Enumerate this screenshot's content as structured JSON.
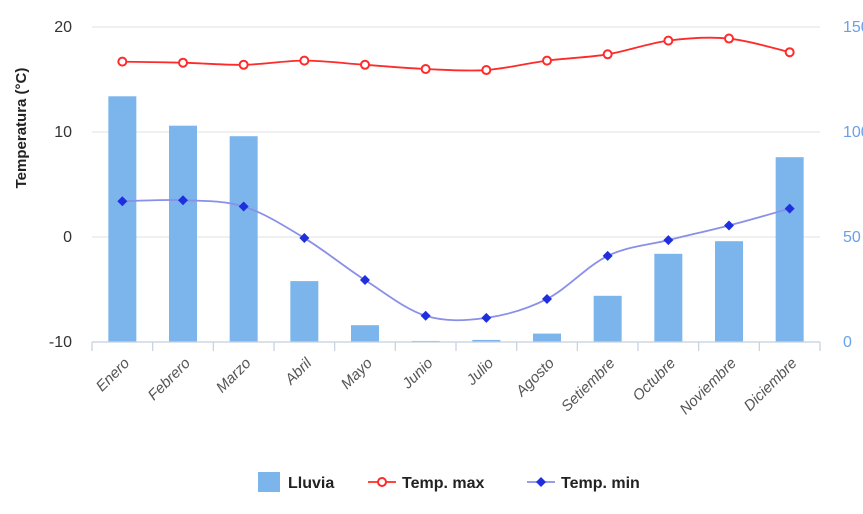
{
  "chart_data": {
    "type": "bar",
    "categories": [
      "Enero",
      "Febrero",
      "Marzo",
      "Abril",
      "Mayo",
      "Junio",
      "Julio",
      "Agosto",
      "Setiembre",
      "Octubre",
      "Noviembre",
      "Diciembre"
    ],
    "ylabel": "Temperatura (°C)",
    "ylim": [
      -10,
      20
    ],
    "yticks": [
      "20",
      "10",
      "0",
      "-10"
    ],
    "y2lim": [
      0,
      150
    ],
    "y2ticks": [
      "150",
      "100",
      "50",
      "0"
    ],
    "legend_position": "bottom",
    "grid": true,
    "series": [
      {
        "name": "Lluvia",
        "type": "bar",
        "axis": "right",
        "color": "#7cb5ec",
        "values": [
          117,
          103,
          98,
          29,
          8,
          0.5,
          1,
          4,
          22,
          42,
          48,
          88
        ]
      },
      {
        "name": "Temp. max",
        "type": "line",
        "axis": "left",
        "color": "#ff2a2a",
        "marker": "circle",
        "values": [
          16.7,
          16.6,
          16.4,
          16.8,
          16.4,
          16.0,
          15.9,
          16.8,
          17.4,
          18.7,
          18.9,
          17.6
        ]
      },
      {
        "name": "Temp. min",
        "type": "line",
        "axis": "left",
        "color": "#1f2fe0",
        "marker": "diamond",
        "values": [
          3.4,
          3.5,
          2.9,
          -0.1,
          -4.1,
          -7.5,
          -7.7,
          -5.9,
          -1.8,
          -0.3,
          1.1,
          2.7
        ]
      }
    ]
  }
}
